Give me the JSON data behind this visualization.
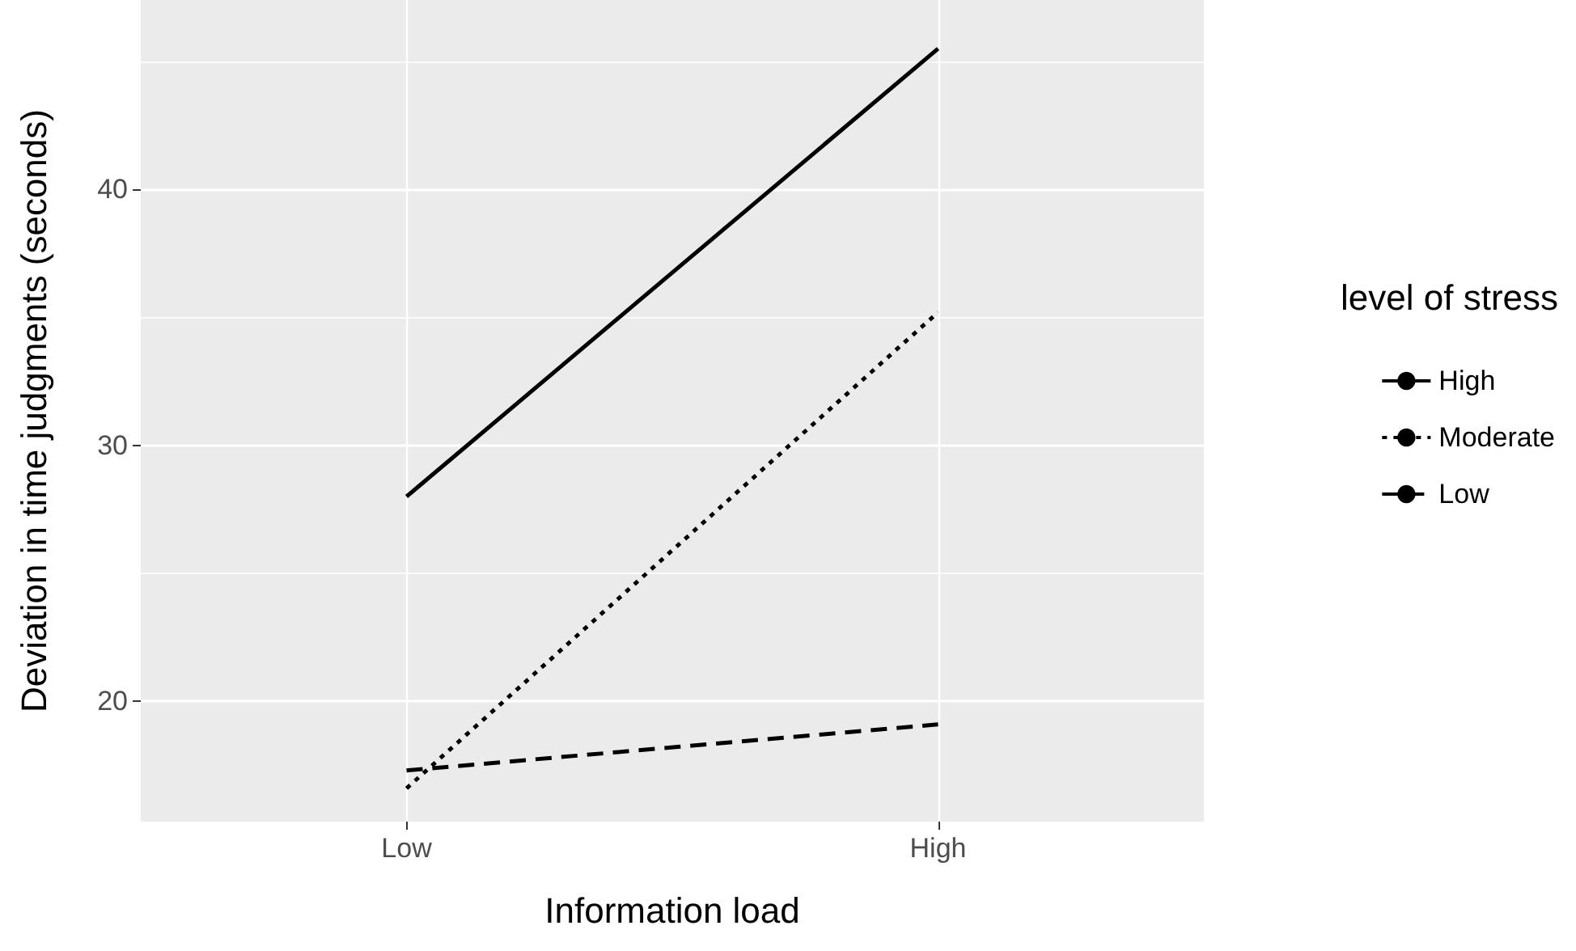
{
  "chart_data": {
    "type": "line",
    "xlabel": "Information load",
    "ylabel": "Deviation in time judgments (seconds)",
    "legend_title": "level of stress",
    "categories": [
      "Low",
      "High"
    ],
    "series": [
      {
        "name": "High",
        "color": "#000000",
        "line_style": "solid",
        "values": [
          28.0,
          45.5
        ]
      },
      {
        "name": "Moderate",
        "color": "#000000",
        "line_style": "dotted",
        "values": [
          16.6,
          35.2
        ]
      },
      {
        "name": "Low",
        "color": "#000000",
        "line_style": "dashed",
        "values": [
          17.3,
          19.1
        ]
      }
    ],
    "ylim": [
      15.3,
      47.4
    ],
    "yticks": [
      20,
      {
        "value": 25,
        "label": null
      },
      30,
      {
        "value": 35,
        "label": null
      },
      40,
      {
        "value": 45,
        "label": null
      }
    ],
    "grid": true,
    "legend": "right",
    "marker": "none"
  }
}
